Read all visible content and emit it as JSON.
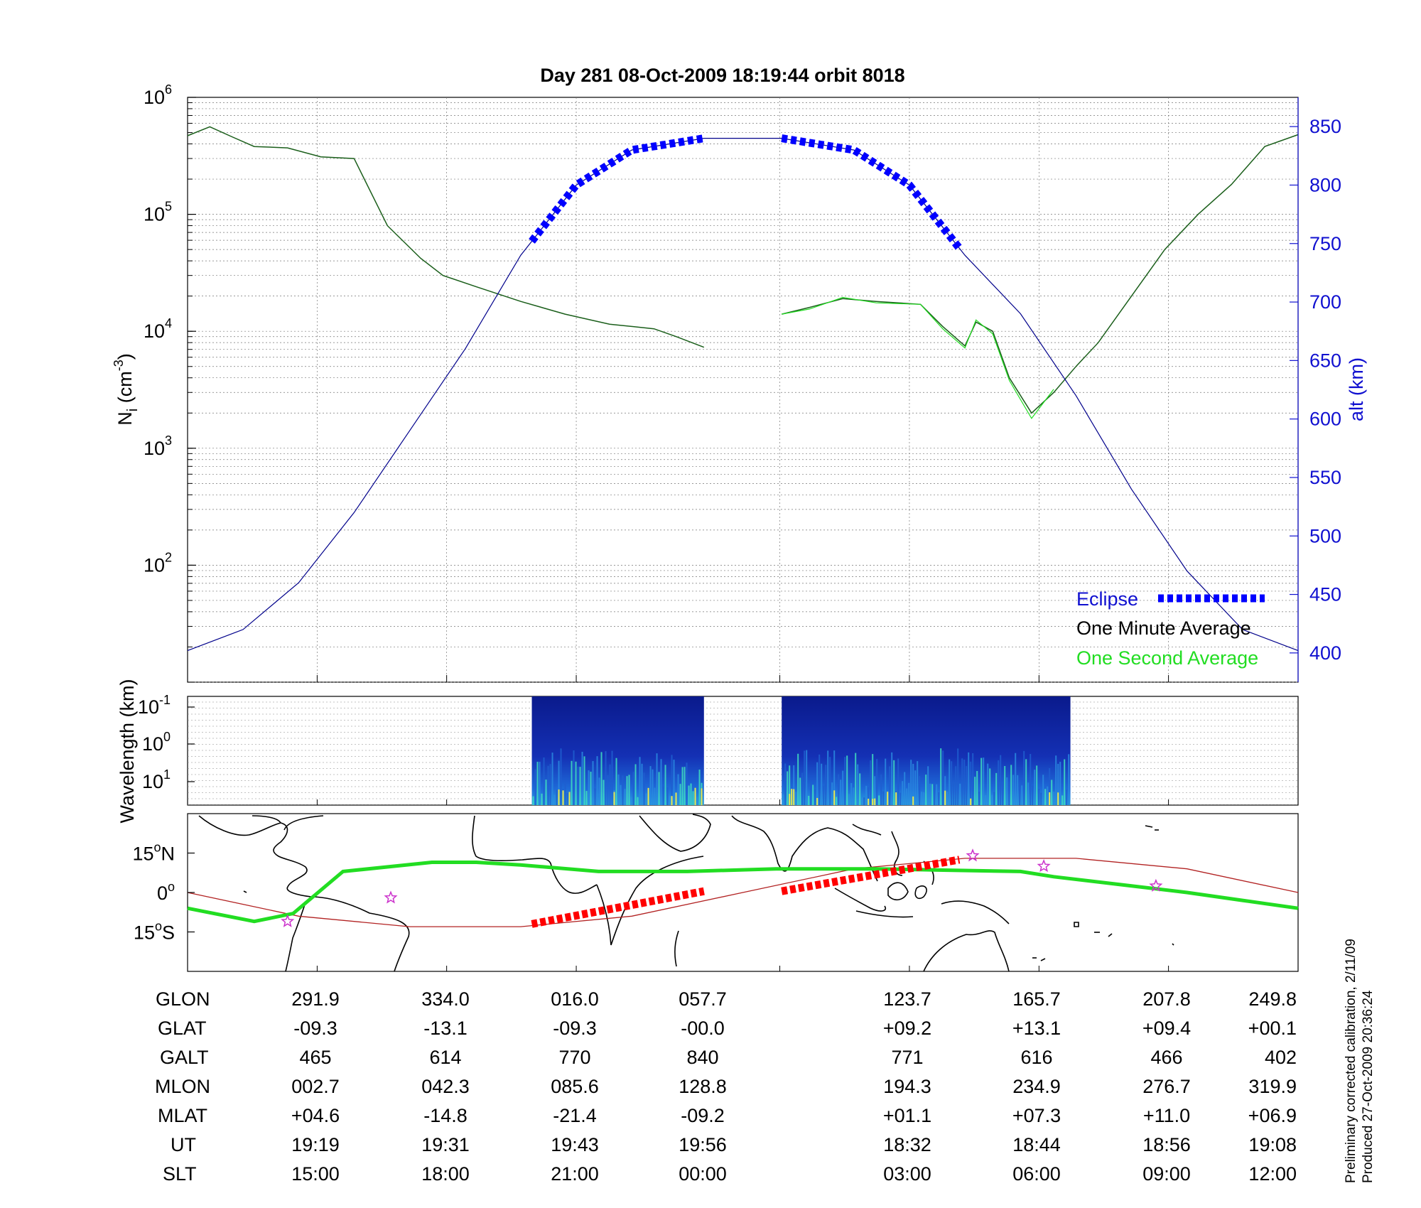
{
  "title": "Day 281  08-Oct-2009 18:19:44   orbit 8018",
  "footnote": {
    "line1": "Preliminary corrected calibration, 2/11/09",
    "line2": "Produced 27-Oct-2009 20:36:24"
  },
  "colors": {
    "eclipse": "#0000ff",
    "minute_avg": "#1a5e1a",
    "second_avg": "#22dd22",
    "altitude": "#00008b",
    "track": "#22dd22",
    "orbit_line": "#b22222",
    "eclipse_track": "#ff0000",
    "star_marker": "#cc33cc"
  },
  "chart_data": [
    {
      "type": "line",
      "panel": "density",
      "ylabel": "Ni (cm-3)",
      "ylabel_main": "N",
      "ylabel_sub": "i",
      "ylabel_unit": " (cm",
      "ylabel_exp": "-3",
      "ylabel_close": ")",
      "yscale": "log",
      "ylim": [
        10,
        1000000
      ],
      "ytick_base": "10",
      "ytick_exps": [
        "6",
        "5",
        "4",
        "3",
        "2"
      ],
      "y2label": "alt (km)",
      "y2lim": [
        375,
        875
      ],
      "y2ticks": [
        "850",
        "800",
        "750",
        "700",
        "650",
        "600",
        "550",
        "500",
        "450",
        "400"
      ],
      "grid": true,
      "legend_placement": "bottom-right",
      "legend": [
        "Eclipse",
        "One Minute Average",
        "One Second Average"
      ],
      "x_domain": [
        0,
        100
      ],
      "series": [
        {
          "name": "One Minute Average",
          "x": [
            0,
            2,
            4,
            6,
            9,
            12,
            15,
            18,
            21,
            23,
            26,
            30,
            34,
            38,
            42,
            44,
            46.5
          ],
          "values": [
            470000,
            560000,
            460000,
            380000,
            370000,
            310000,
            300000,
            80000,
            42000,
            30000,
            24000,
            18000,
            14000,
            11500,
            10500,
            9000,
            7300
          ]
        },
        {
          "name": "One Minute Average (second segment)",
          "x": [
            53.5,
            56,
            59,
            62,
            66,
            68,
            70,
            71,
            72.5,
            74,
            76,
            78,
            80,
            82,
            85,
            88,
            91,
            94,
            97,
            100
          ],
          "values": [
            14000,
            16000,
            19000,
            18000,
            17000,
            11000,
            7500,
            12000,
            10000,
            4000,
            2000,
            3000,
            5000,
            8000,
            20000,
            50000,
            100000,
            180000,
            380000,
            480000
          ]
        },
        {
          "name": "One Second Average",
          "x": [
            53.5,
            56,
            59,
            62,
            66,
            68,
            70,
            71,
            72.5,
            74,
            76,
            78
          ],
          "values": [
            14000,
            15500,
            19500,
            17500,
            17000,
            10500,
            7200,
            12500,
            9500,
            3800,
            1800,
            3200
          ]
        },
        {
          "name": "alt",
          "axis": "right",
          "x": [
            0,
            5,
            10,
            15,
            20,
            25,
            30,
            35,
            40,
            46.5,
            53.5,
            60,
            65,
            70,
            75,
            80,
            85,
            90,
            95,
            100
          ],
          "values": [
            402,
            420,
            460,
            520,
            590,
            660,
            740,
            800,
            830,
            840,
            840,
            830,
            800,
            740,
            690,
            620,
            540,
            470,
            420,
            402
          ]
        }
      ],
      "eclipse_segments": [
        [
          31,
          46.5
        ],
        [
          53.5,
          69.5
        ]
      ]
    },
    {
      "type": "heatmap",
      "panel": "spectrogram",
      "ylabel": "Wavelength (km)",
      "ytick_base": "10",
      "ytick_exps": [
        "-1",
        "0",
        "1"
      ],
      "segments": [
        [
          31,
          46.5
        ],
        [
          53.5,
          79.5
        ]
      ]
    },
    {
      "type": "line",
      "panel": "ground-track",
      "ylim": [
        -30,
        30
      ],
      "yticks": [
        {
          "deg": "15",
          "sym": "o",
          "hemi": "N"
        },
        {
          "deg": "0",
          "sym": "o",
          "hemi": ""
        },
        {
          "deg": "15",
          "sym": "o",
          "hemi": "S"
        }
      ],
      "series": [
        {
          "name": "track",
          "x": [
            0,
            6,
            9.5,
            14,
            22,
            26,
            30,
            37,
            45,
            53,
            62,
            68,
            75,
            78,
            84,
            90,
            95,
            100
          ],
          "values": [
            -6,
            -11,
            -8,
            8,
            11.5,
            11.5,
            10.5,
            8,
            8,
            9,
            9,
            8.5,
            8,
            6,
            3,
            0,
            -3,
            -6
          ]
        },
        {
          "name": "orbit",
          "x": [
            0,
            10,
            20,
            30,
            40,
            50,
            60,
            70,
            80,
            90,
            100
          ],
          "values": [
            0,
            -9,
            -13,
            -13,
            -9,
            0,
            9,
            13,
            13,
            9,
            0
          ]
        }
      ],
      "eclipse_track": [
        {
          "x": [
            31,
            46.5
          ],
          "values": [
            -12,
            0.5
          ]
        },
        {
          "x": [
            53.5,
            69.5
          ],
          "values": [
            0.5,
            12.5
          ]
        }
      ],
      "stars": [
        {
          "x": 9,
          "y": -11
        },
        {
          "x": 18.3,
          "y": -2
        },
        {
          "x": 70.7,
          "y": 14
        },
        {
          "x": 77.1,
          "y": 10
        },
        {
          "x": 87.2,
          "y": 2.5
        }
      ]
    }
  ],
  "table": {
    "row_labels": [
      "GLON",
      "GLAT",
      "GALT",
      "MLON",
      "MLAT",
      "UT",
      "SLT"
    ],
    "columns": [
      {
        "GLON": "291.9",
        "GLAT": "-09.3",
        "GALT": "465",
        "MLON": "002.7",
        "MLAT": "+04.6",
        "UT": "19:19",
        "SLT": "15:00"
      },
      {
        "GLON": "334.0",
        "GLAT": "-13.1",
        "GALT": "614",
        "MLON": "042.3",
        "MLAT": "-14.8",
        "UT": "19:31",
        "SLT": "18:00"
      },
      {
        "GLON": "016.0",
        "GLAT": "-09.3",
        "GALT": "770",
        "MLON": "085.6",
        "MLAT": "-21.4",
        "UT": "19:43",
        "SLT": "21:00"
      },
      {
        "GLON": "057.7",
        "GLAT": "-00.0",
        "GALT": "840",
        "MLON": "128.8",
        "MLAT": "-09.2",
        "UT": "19:56",
        "SLT": "00:00"
      },
      {
        "GLON": "123.7",
        "GLAT": "+09.2",
        "GALT": "771",
        "MLON": "194.3",
        "MLAT": "+01.1",
        "UT": "18:32",
        "SLT": "03:00"
      },
      {
        "GLON": "165.7",
        "GLAT": "+13.1",
        "GALT": "616",
        "MLON": "234.9",
        "MLAT": "+07.3",
        "UT": "18:44",
        "SLT": "06:00"
      },
      {
        "GLON": "207.8",
        "GLAT": "+09.4",
        "GALT": "466",
        "MLON": "276.7",
        "MLAT": "+11.0",
        "UT": "18:56",
        "SLT": "09:00"
      },
      {
        "GLON": "249.8",
        "GLAT": "+00.1",
        "GALT": "402",
        "MLON": "319.9",
        "MLAT": "+06.9",
        "UT": "19:08",
        "SLT": "12:00"
      }
    ]
  }
}
